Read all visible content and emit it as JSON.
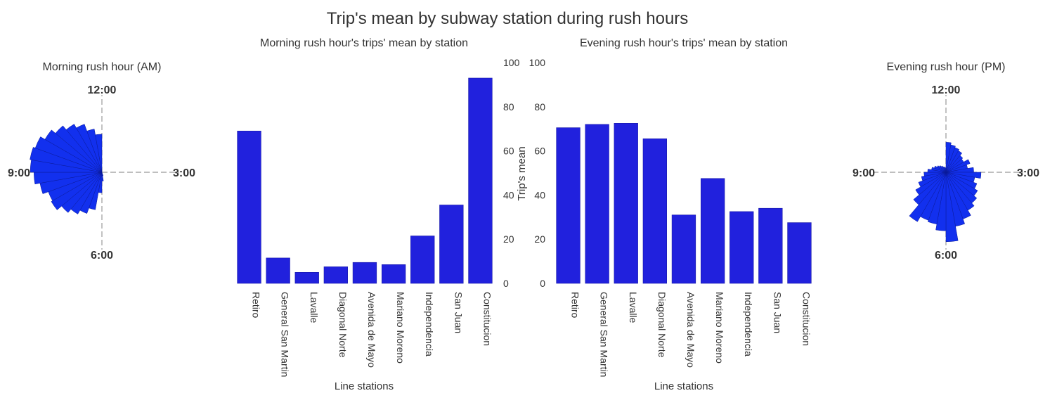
{
  "title": "Trip's mean by subway station during rush hours",
  "colors": {
    "bar": "#2121dd",
    "bar_edge": "#1a1aa8",
    "polar_bar": "#1230ee",
    "axis_line": "#999999",
    "text": "#333333"
  },
  "chart_data": [
    {
      "type": "polar",
      "title": "Morning rush hour (AM)",
      "hour_labels": [
        "12:00",
        "3:00",
        "6:00",
        "9:00"
      ],
      "bins": 36,
      "radii": [
        0,
        0,
        0,
        0,
        0,
        0,
        0,
        0,
        0,
        0,
        0,
        0,
        0,
        0,
        0,
        0,
        0.05,
        0.12,
        0.28,
        0.52,
        0.6,
        0.66,
        0.72,
        0.8,
        0.78,
        0.86,
        0.93,
        0.98,
        1.0,
        0.97,
        0.9,
        0.83,
        0.76,
        0.7,
        0.6,
        0.52
      ]
    },
    {
      "type": "bar",
      "title": "Morning rush hour's trips' mean by station",
      "xlabel": "Line stations",
      "ylabel": "Trip's mean",
      "ylim": [
        0,
        100
      ],
      "yticks": [
        "0",
        "20",
        "40",
        "60",
        "80",
        "100"
      ],
      "ytick_side": "right",
      "categories": [
        "Retiro",
        "General San Martin",
        "Lavalle",
        "Diagonal Norte",
        "Avenida de Mayo",
        "Mariano Moreno",
        "Independencia",
        "San Juan",
        "Constitucion"
      ],
      "values": [
        69,
        11.5,
        5,
        7.5,
        9.5,
        8.5,
        21.5,
        35.5,
        93
      ]
    },
    {
      "type": "bar",
      "title": "Evening rush hour's trips' mean by station",
      "xlabel": "Line stations",
      "ylabel": "",
      "ylim": [
        0,
        100
      ],
      "yticks": [
        "0",
        "20",
        "40",
        "60",
        "80",
        "100"
      ],
      "ytick_side": "left",
      "categories": [
        "Retiro",
        "General San Martin",
        "Lavalle",
        "Diagonal Norte",
        "Avenida de Mayo",
        "Mariano Moreno",
        "Independencia",
        "San Juan",
        "Constitucion"
      ],
      "values": [
        70.5,
        72,
        72.5,
        65.5,
        31,
        47.5,
        32.5,
        34,
        27.5
      ]
    },
    {
      "type": "polar",
      "title": "Evening rush hour (PM)",
      "hour_labels": [
        "12:00",
        "3:00",
        "6:00",
        "9:00"
      ],
      "bins": 36,
      "radii": [
        0.41,
        0.38,
        0.36,
        0.34,
        0.3,
        0.28,
        0.35,
        0.3,
        0.38,
        0.48,
        0.4,
        0.45,
        0.5,
        0.55,
        0.6,
        0.68,
        0.75,
        0.95,
        0.8,
        0.72,
        0.7,
        0.78,
        0.58,
        0.48,
        0.4,
        0.34,
        0.3,
        0.25,
        0.2,
        0.17,
        0.14,
        0.12,
        0.1,
        0.08,
        0.07,
        0.06
      ]
    }
  ]
}
